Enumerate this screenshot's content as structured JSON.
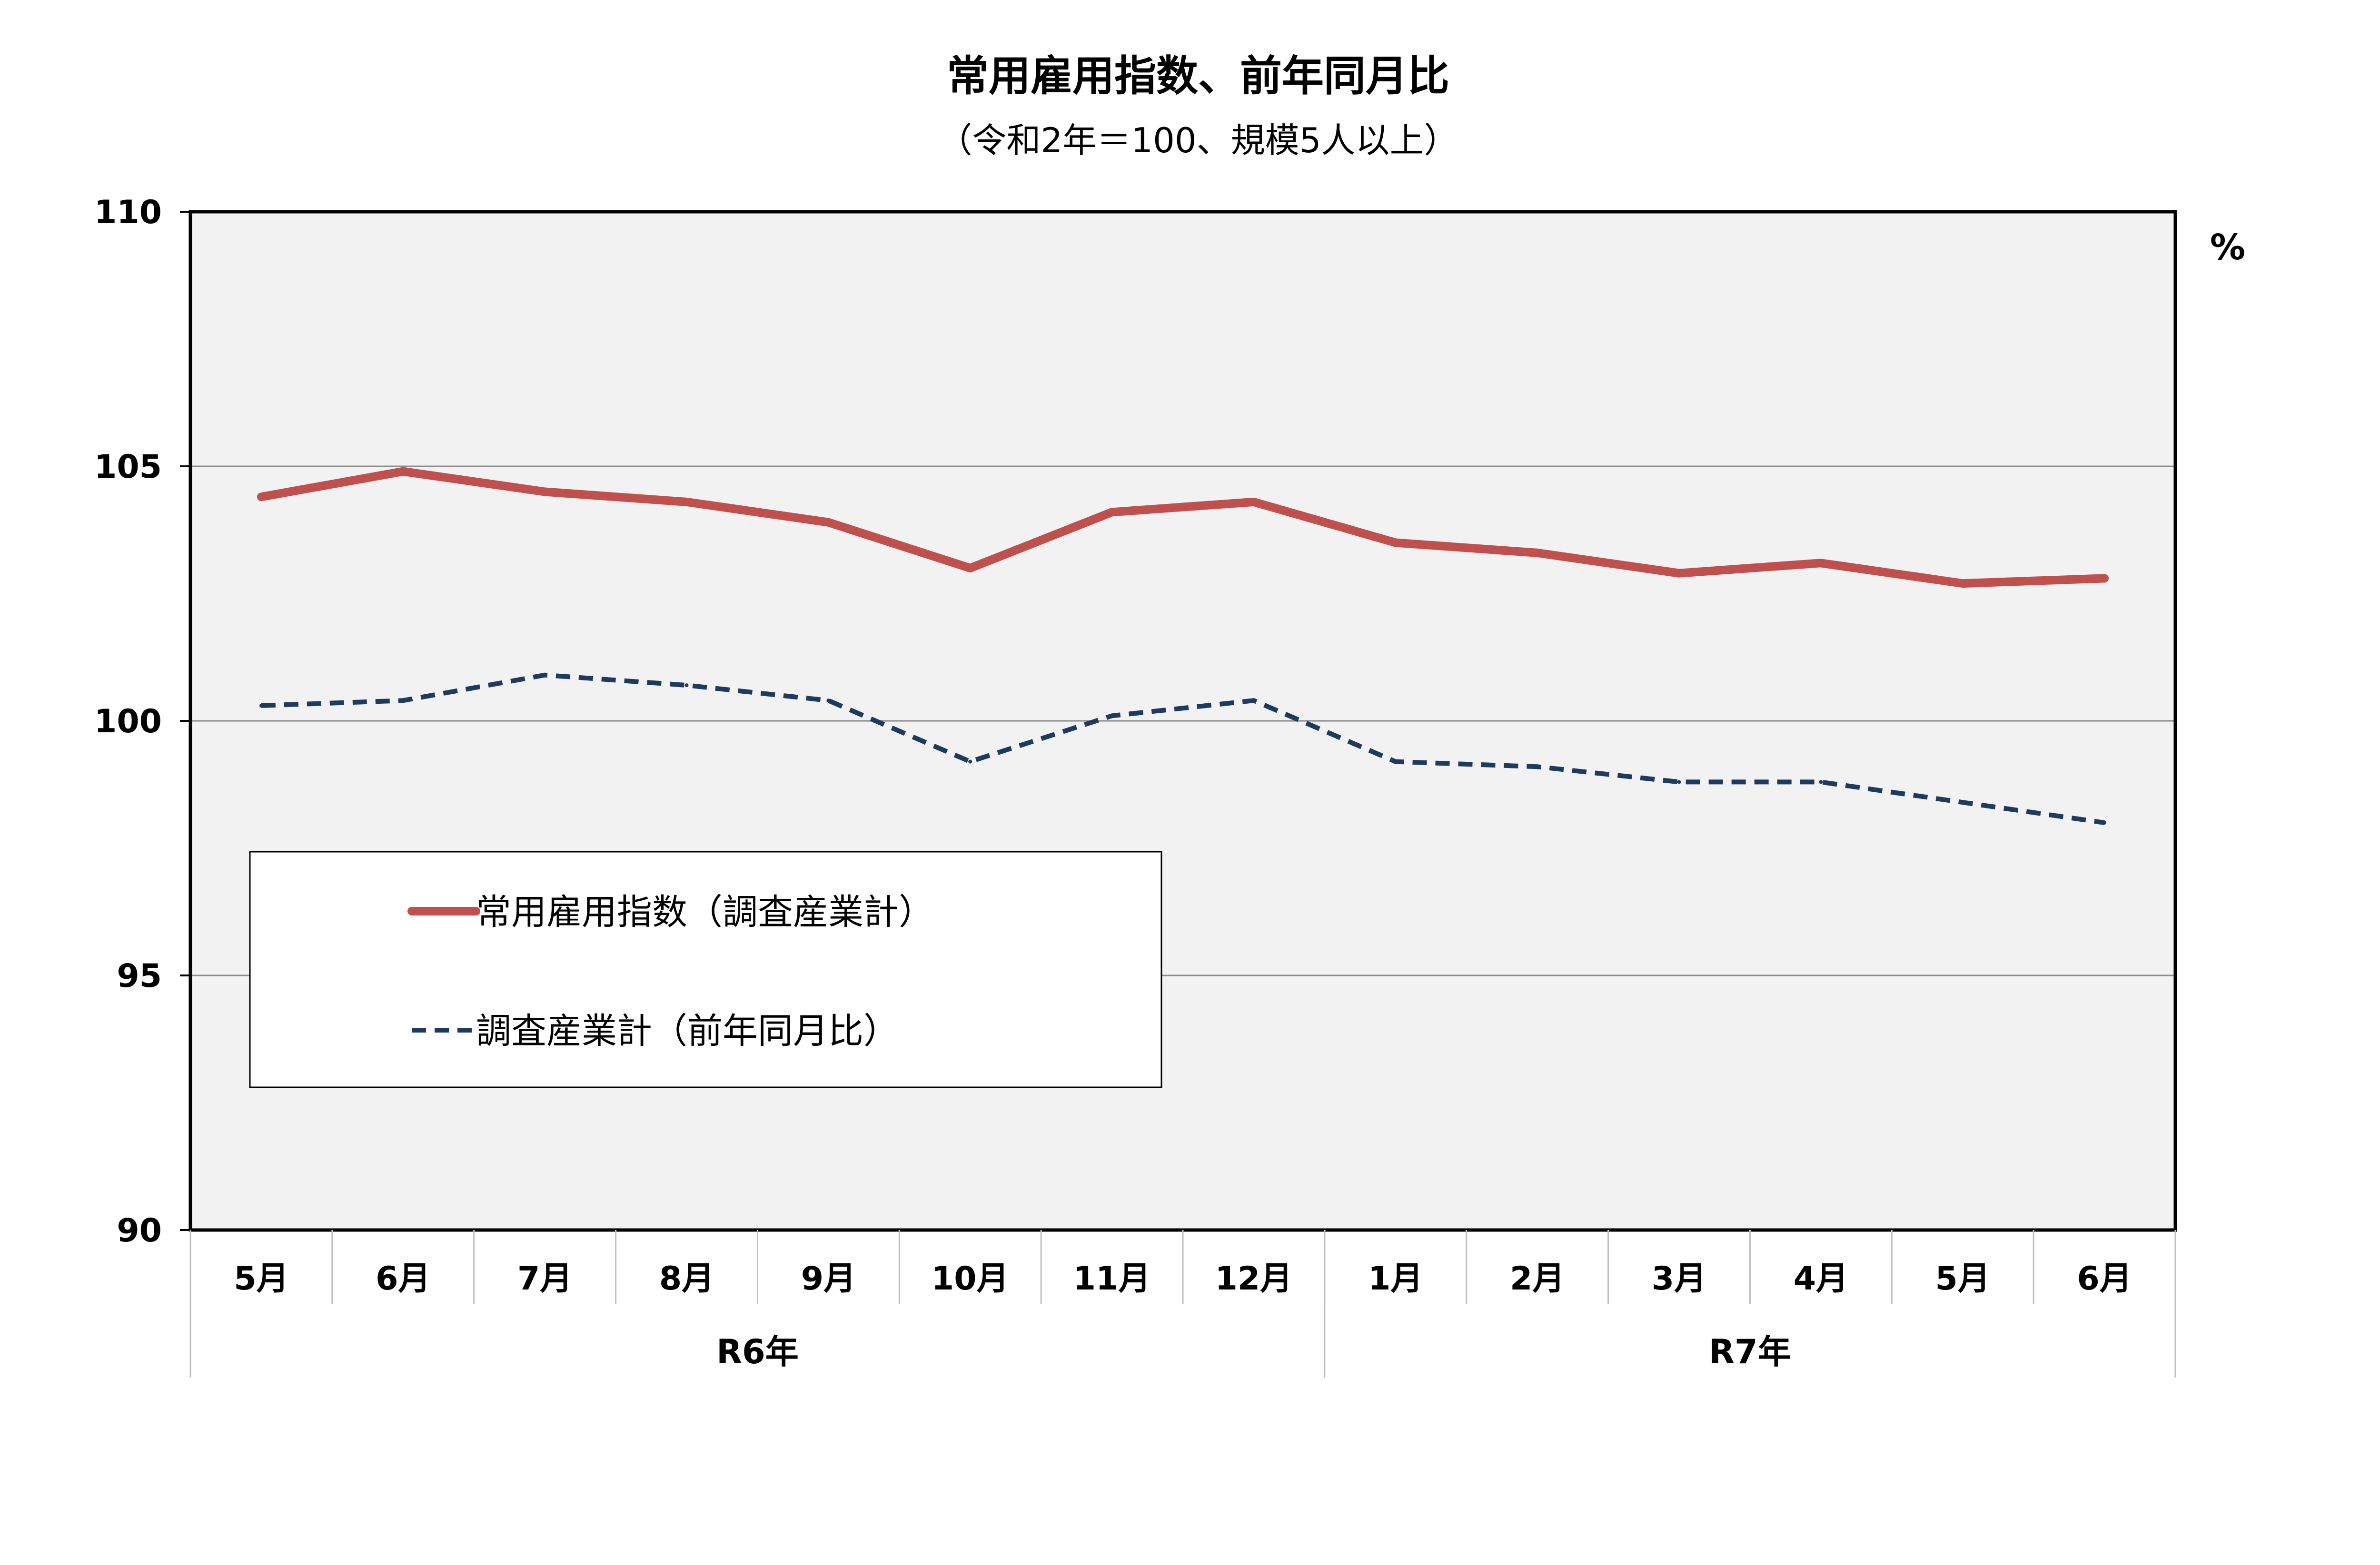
{
  "chart_data": {
    "type": "line",
    "title": "常用雇用指数、前年同月比",
    "subtitle": "（令和2年＝100、規模5人以上）",
    "unit": "%",
    "ylim": [
      90,
      110
    ],
    "yticks": [
      "110",
      "105",
      "100",
      "95",
      "90"
    ],
    "categories": [
      "5月",
      "6月",
      "7月",
      "8月",
      "9月",
      "10月",
      "11月",
      "12月",
      "1月",
      "2月",
      "3月",
      "4月",
      "5月",
      "6月"
    ],
    "year_groups": [
      {
        "label": "R6年",
        "count": 8
      },
      {
        "label": "R7年",
        "count": 6
      }
    ],
    "grid": true,
    "legend_position": "bottom-left",
    "series": [
      {
        "name": "常用雇用指数（調査産業計）",
        "color": "#c0504d",
        "style": "solid",
        "values": [
          104.4,
          104.9,
          104.5,
          104.3,
          103.9,
          103.0,
          104.1,
          104.3,
          103.5,
          103.3,
          102.9,
          103.1,
          102.7,
          102.8
        ]
      },
      {
        "name": "調査産業計（前年同月比）",
        "color": "#1f3a5f",
        "style": "dashed",
        "values": [
          100.3,
          100.4,
          100.9,
          100.7,
          100.4,
          99.2,
          100.1,
          100.4,
          99.2,
          99.1,
          98.8,
          98.8,
          98.4,
          98.0
        ]
      }
    ]
  }
}
